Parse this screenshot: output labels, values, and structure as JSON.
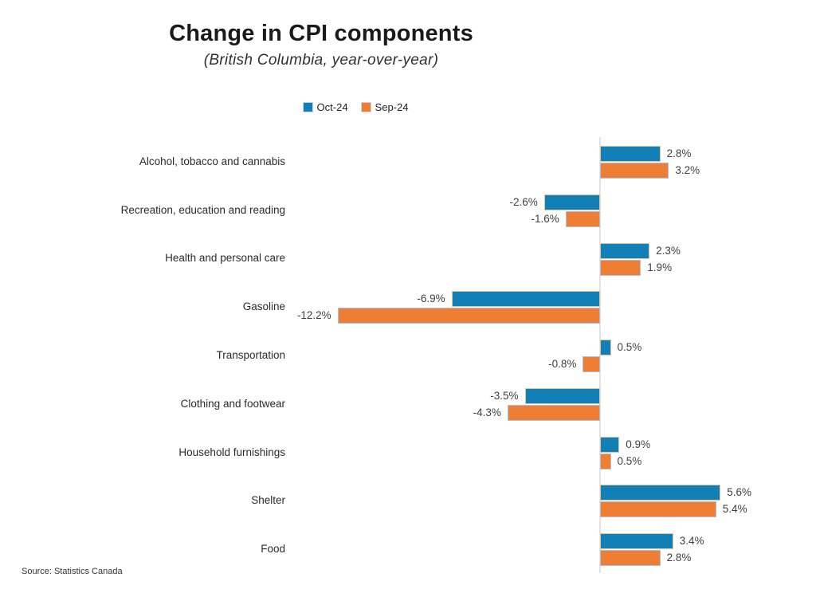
{
  "header": {
    "title": "Change in CPI components",
    "subtitle": "(British Columbia, year-over-year)"
  },
  "legend": {
    "items": [
      {
        "label": "Oct-24",
        "color": "#1280B6"
      },
      {
        "label": "Sep-24",
        "color": "#EE7E33"
      }
    ]
  },
  "source": "Source: Statistics Canada",
  "colors": {
    "oct": "#1280B6",
    "sep": "#EE7E33",
    "axis": "#E2E2E2"
  },
  "chart_data": {
    "type": "bar",
    "orientation": "horizontal",
    "title": "Change in CPI components",
    "subtitle": "(British Columbia, year-over-year)",
    "legend_position": "top-center",
    "grid": false,
    "xlim": [
      -14.5,
      10
    ],
    "categories": [
      "Alcohol, tobacco and cannabis",
      "Recreation, education and reading",
      "Health and personal care",
      "Gasoline",
      "Transportation",
      "Clothing and footwear",
      "Household furnishings",
      "Shelter",
      "Food"
    ],
    "series": [
      {
        "name": "Oct-24",
        "color": "#1280B6",
        "values": [
          2.8,
          -2.6,
          2.3,
          -6.9,
          0.5,
          -3.5,
          0.9,
          5.6,
          3.4
        ],
        "labels": [
          "2.8%",
          "-2.6%",
          "2.3%",
          "-6.9%",
          "0.5%",
          "-3.5%",
          "0.9%",
          "5.6%",
          "3.4%"
        ]
      },
      {
        "name": "Sep-24",
        "color": "#EE7E33",
        "values": [
          3.2,
          -1.6,
          1.9,
          -12.2,
          -0.8,
          -4.3,
          0.5,
          5.4,
          2.8
        ],
        "labels": [
          "3.2%",
          "-1.6%",
          "1.9%",
          "-12.2%",
          "-0.8%",
          "-4.3%",
          "0.5%",
          "5.4%",
          "2.8%"
        ]
      }
    ]
  }
}
